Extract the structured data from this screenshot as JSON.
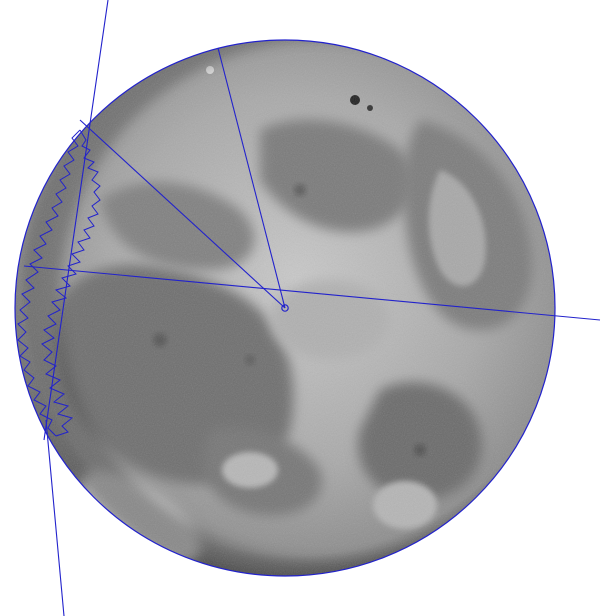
{
  "scene": {
    "subject": "moon-photograph-with-overlay",
    "colors": {
      "background": "#ffffff",
      "moon_highland": "#bdbdbd",
      "moon_mare": "#6a6a6a",
      "moon_rim_shadow": "#3e3e3e",
      "overlay_line": "#2222cc"
    },
    "icons": [
      "center-point-icon"
    ]
  }
}
